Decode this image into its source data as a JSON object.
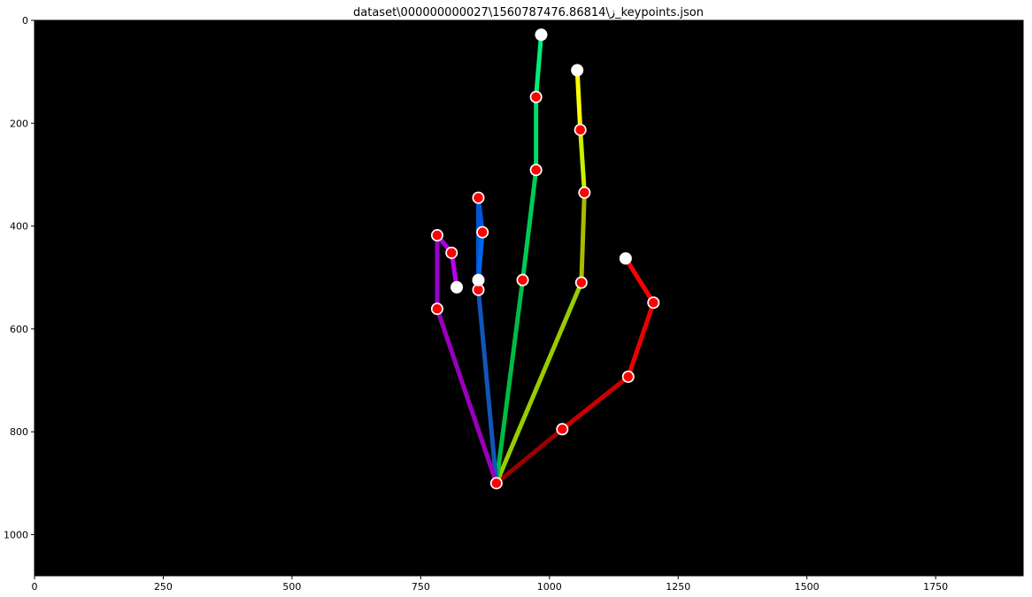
{
  "chart_data": {
    "type": "scatter",
    "title": "dataset\\ز\\1560787476.86814\\000000000027_keypoints.json",
    "xlabel": "",
    "ylabel": "",
    "xlim": [
      0,
      1920
    ],
    "ylim": [
      1080,
      0
    ],
    "background": "#000000",
    "x_ticks": [
      0,
      250,
      500,
      750,
      1000,
      1250,
      1500,
      1750
    ],
    "y_ticks": [
      0,
      200,
      400,
      600,
      800,
      1000
    ],
    "keypoints": [
      {
        "id": 0,
        "x": 897,
        "y": 900,
        "color": "#ff0000"
      },
      {
        "id": 1,
        "x": 1025,
        "y": 795,
        "color": "#ff0000"
      },
      {
        "id": 2,
        "x": 1153,
        "y": 693,
        "color": "#ff0000"
      },
      {
        "id": 3,
        "x": 1202,
        "y": 549,
        "color": "#ff0000"
      },
      {
        "id": 4,
        "x": 1148,
        "y": 463,
        "color": "#ffffff"
      },
      {
        "id": 5,
        "x": 1062,
        "y": 510,
        "color": "#ff0000"
      },
      {
        "id": 6,
        "x": 1068,
        "y": 335,
        "color": "#ff0000"
      },
      {
        "id": 7,
        "x": 1060,
        "y": 213,
        "color": "#ff0000"
      },
      {
        "id": 8,
        "x": 1054,
        "y": 97,
        "color": "#ffffff"
      },
      {
        "id": 9,
        "x": 948,
        "y": 505,
        "color": "#ff0000"
      },
      {
        "id": 10,
        "x": 974,
        "y": 291,
        "color": "#ff0000"
      },
      {
        "id": 11,
        "x": 974,
        "y": 149,
        "color": "#ff0000"
      },
      {
        "id": 12,
        "x": 984,
        "y": 28,
        "color": "#ffffff"
      },
      {
        "id": 13,
        "x": 862,
        "y": 524,
        "color": "#ff0000"
      },
      {
        "id": 14,
        "x": 862,
        "y": 345,
        "color": "#ff0000"
      },
      {
        "id": 15,
        "x": 870,
        "y": 412,
        "color": "#ff0000"
      },
      {
        "id": 16,
        "x": 862,
        "y": 505,
        "color": "#ffffff"
      },
      {
        "id": 17,
        "x": 782,
        "y": 561,
        "color": "#ff0000"
      },
      {
        "id": 18,
        "x": 782,
        "y": 418,
        "color": "#ff0000"
      },
      {
        "id": 19,
        "x": 810,
        "y": 452,
        "color": "#ff0000"
      },
      {
        "id": 20,
        "x": 820,
        "y": 519,
        "color": "#ffffff"
      }
    ],
    "bones": [
      {
        "from": 0,
        "to": 1,
        "color": "#990000"
      },
      {
        "from": 1,
        "to": 2,
        "color": "#cc0000"
      },
      {
        "from": 2,
        "to": 3,
        "color": "#ee0000"
      },
      {
        "from": 3,
        "to": 4,
        "color": "#ff0000"
      },
      {
        "from": 0,
        "to": 5,
        "color": "#99cc00"
      },
      {
        "from": 5,
        "to": 6,
        "color": "#aabb00"
      },
      {
        "from": 6,
        "to": 7,
        "color": "#ccee00"
      },
      {
        "from": 7,
        "to": 8,
        "color": "#ffff00"
      },
      {
        "from": 0,
        "to": 9,
        "color": "#00bb44"
      },
      {
        "from": 9,
        "to": 10,
        "color": "#00cc55"
      },
      {
        "from": 10,
        "to": 11,
        "color": "#00dd66"
      },
      {
        "from": 11,
        "to": 12,
        "color": "#00ee77"
      },
      {
        "from": 0,
        "to": 13,
        "color": "#1155bb"
      },
      {
        "from": 13,
        "to": 14,
        "color": "#0055cc"
      },
      {
        "from": 14,
        "to": 15,
        "color": "#0055dd"
      },
      {
        "from": 15,
        "to": 16,
        "color": "#0066ee"
      },
      {
        "from": 0,
        "to": 17,
        "color": "#9900bb"
      },
      {
        "from": 17,
        "to": 18,
        "color": "#9900cc"
      },
      {
        "from": 18,
        "to": 19,
        "color": "#aa00dd"
      },
      {
        "from": 19,
        "to": 20,
        "color": "#bb00ee"
      }
    ]
  }
}
